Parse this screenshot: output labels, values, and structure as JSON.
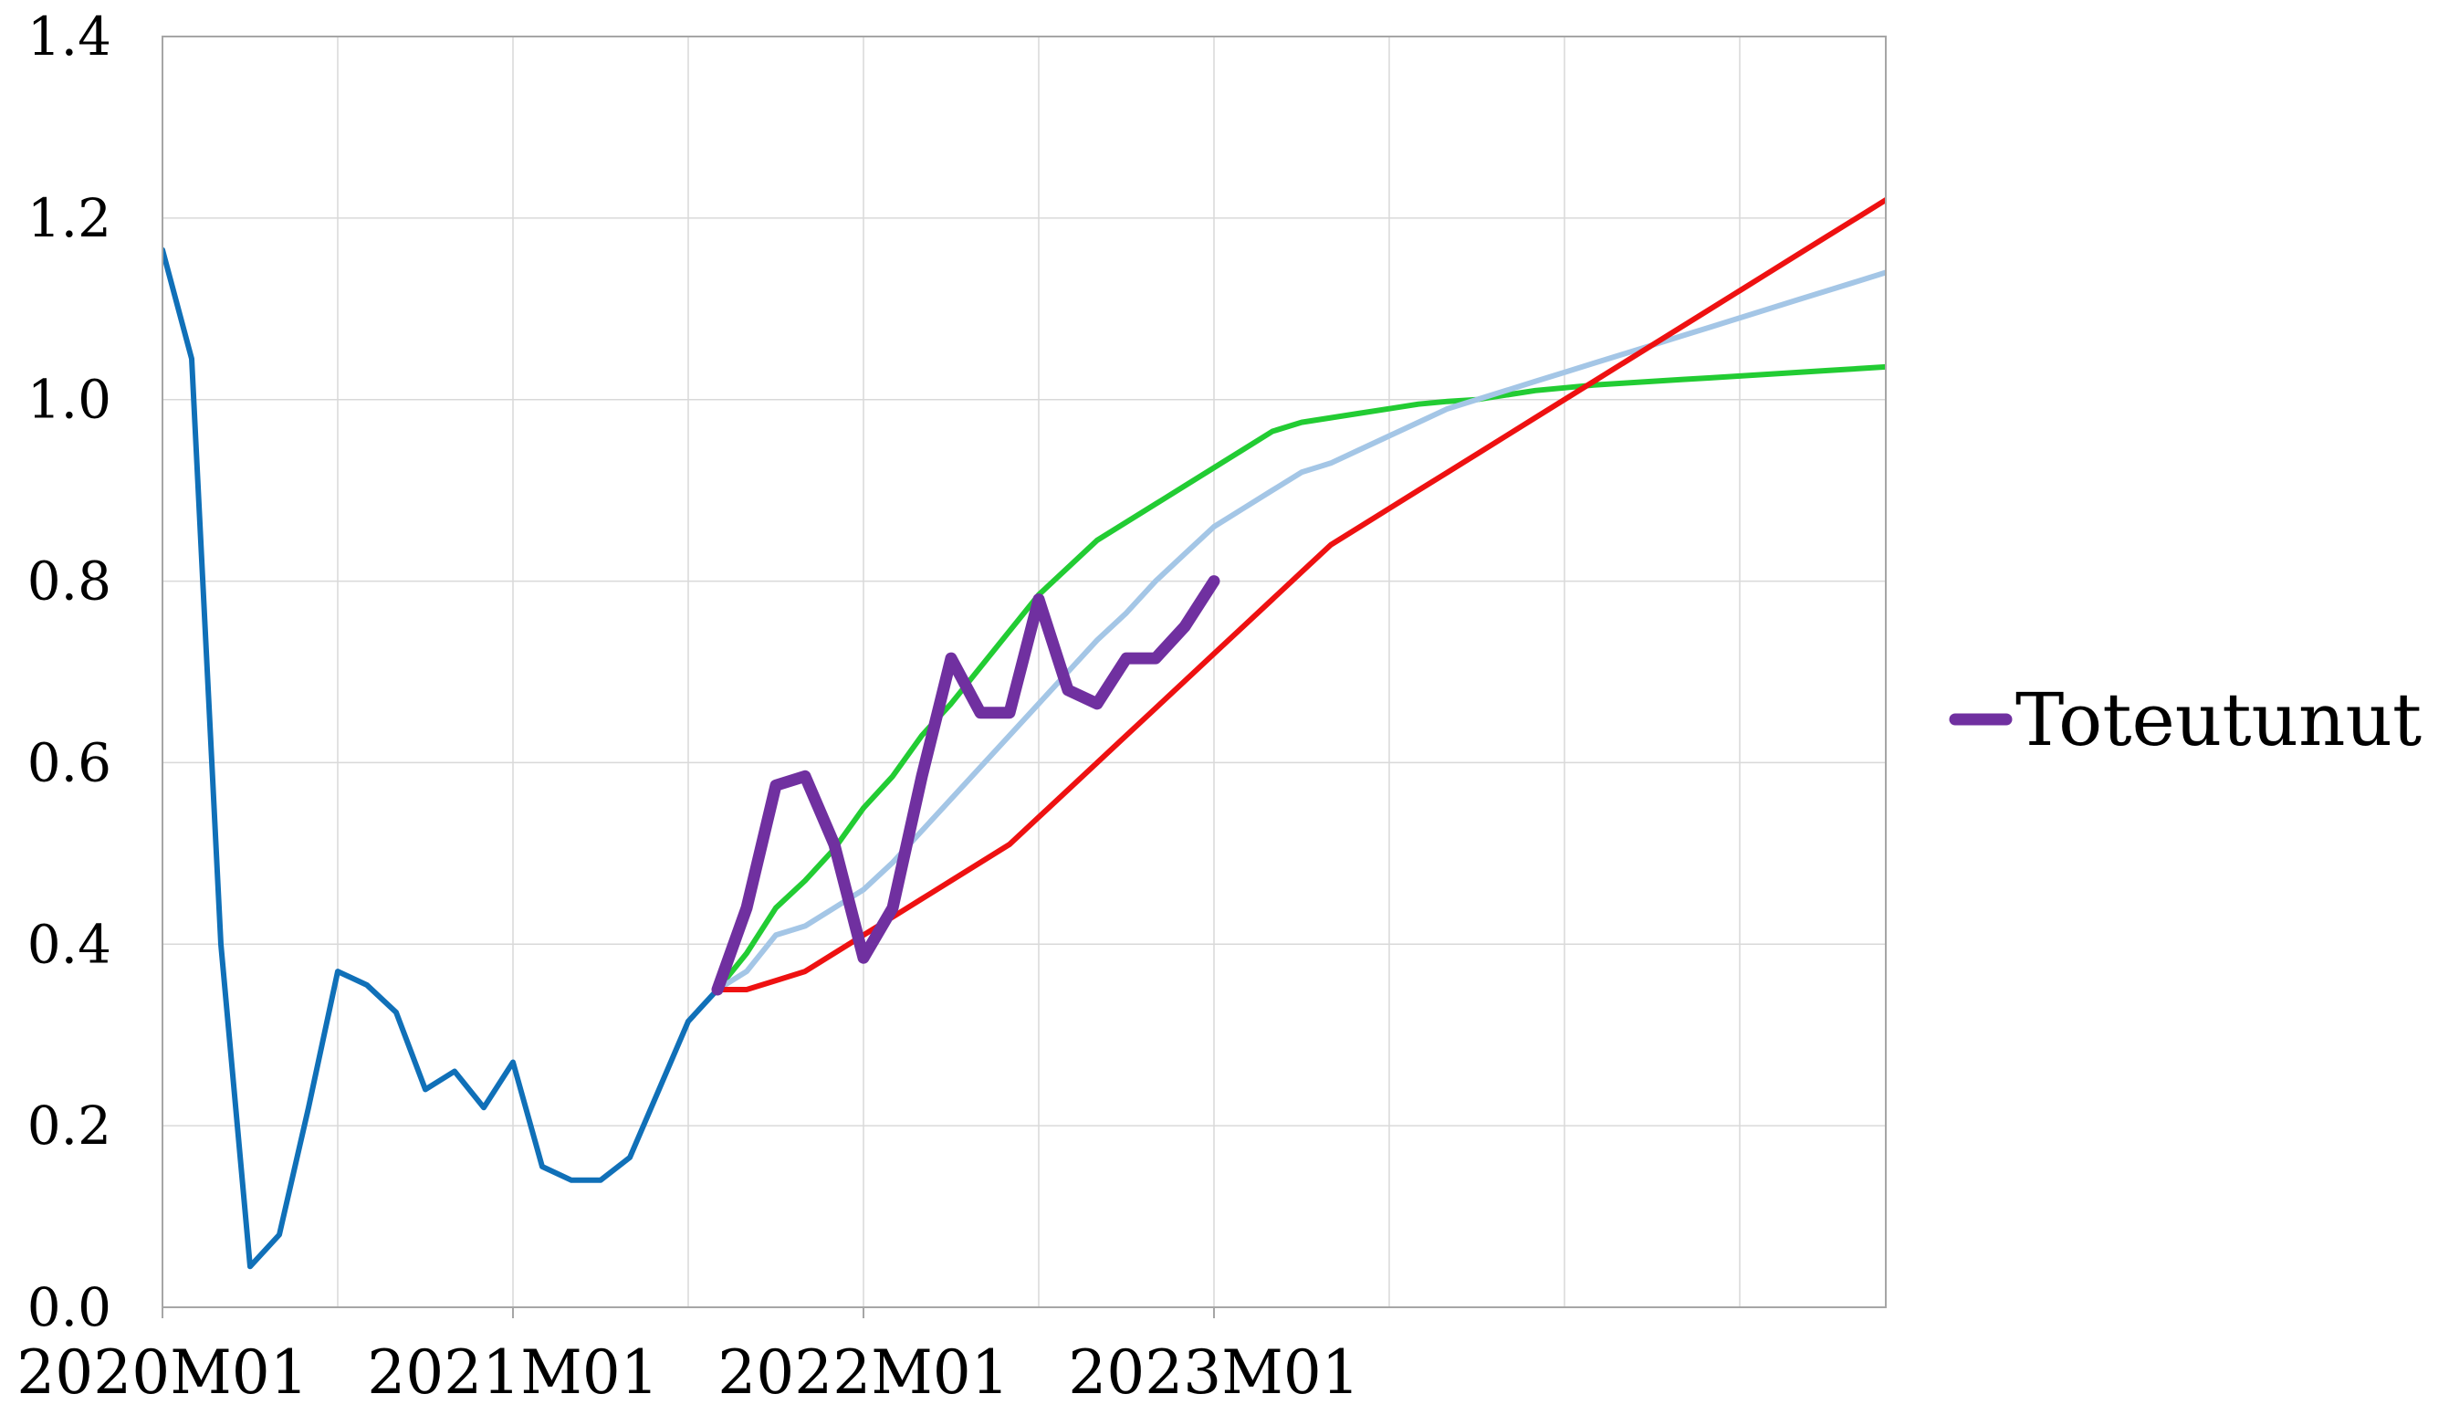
{
  "chart_data": {
    "type": "line",
    "title": "",
    "xlabel": "",
    "ylabel": "",
    "ylim": [
      0.0,
      1.4
    ],
    "yticks": [
      "0.0",
      "0.2",
      "0.4",
      "0.6",
      "0.8",
      "1.0",
      "1.2",
      "1.4"
    ],
    "x_start": "2020M01",
    "x_end": "2024M12",
    "xticks": [
      {
        "label": "2020M01",
        "x": "2020M01"
      },
      {
        "label": "2021M01",
        "x": "2021M01"
      },
      {
        "label": "2022M01",
        "x": "2022M01"
      },
      {
        "label": "2023M01",
        "x": "2023M01"
      }
    ],
    "grid": true,
    "legend_position": "right",
    "series": [
      {
        "name": "",
        "color": "#1070b8",
        "x": [
          "2020M01",
          "2020M02",
          "2020M03",
          "2020M04",
          "2020M05",
          "2020M06",
          "2020M07",
          "2020M08",
          "2020M09",
          "2020M10",
          "2020M11",
          "2020M12",
          "2021M01",
          "2021M02",
          "2021M03",
          "2021M04",
          "2021M05",
          "2021M06",
          "2021M07",
          "2021M08"
        ],
        "values": [
          1.165,
          1.045,
          0.4,
          0.045,
          0.08,
          0.22,
          0.37,
          0.355,
          0.325,
          0.24,
          0.26,
          0.22,
          0.27,
          0.155,
          0.14,
          0.14,
          0.165,
          0.24,
          0.315,
          0.35
        ]
      },
      {
        "name": "",
        "color": "#22cc33",
        "x": [
          "2021M08",
          "2021M09",
          "2021M10",
          "2021M11",
          "2021M12",
          "2022M01",
          "2022M02",
          "2022M03",
          "2022M04",
          "2022M05",
          "2022M06",
          "2022M07",
          "2022M08",
          "2022M09",
          "2022M10",
          "2022M11",
          "2022M12",
          "2023M01",
          "2023M02",
          "2023M03",
          "2023M04",
          "2023M05",
          "2023M06",
          "2023M07",
          "2023M08",
          "2023M09",
          "2023M10",
          "2023M11",
          "2023M12",
          "2024M01",
          "2024M02",
          "2024M03",
          "2024M04",
          "2024M05",
          "2024M06",
          "2024M07",
          "2024M08",
          "2024M09",
          "2024M10",
          "2024M11",
          "2024M12"
        ],
        "values": [
          0.35,
          0.39,
          0.44,
          0.47,
          0.505,
          0.55,
          0.585,
          0.63,
          0.665,
          0.705,
          0.745,
          0.785,
          0.815,
          0.845,
          0.865,
          0.885,
          0.905,
          0.925,
          0.945,
          0.965,
          0.975,
          0.98,
          0.985,
          0.99,
          0.995,
          0.998,
          1.0,
          1.005,
          1.01,
          1.013,
          1.016,
          1.018,
          1.02,
          1.022,
          1.024,
          1.026,
          1.028,
          1.03,
          1.032,
          1.034,
          1.036
        ]
      },
      {
        "name": "",
        "color": "#a4c6e6",
        "x": [
          "2021M08",
          "2021M09",
          "2021M10",
          "2021M11",
          "2021M12",
          "2022M01",
          "2022M02",
          "2022M03",
          "2022M04",
          "2022M05",
          "2022M06",
          "2022M07",
          "2022M08",
          "2022M09",
          "2022M10",
          "2022M11",
          "2022M12",
          "2023M01",
          "2023M02",
          "2023M03",
          "2023M04",
          "2023M05",
          "2023M06",
          "2023M07",
          "2023M08",
          "2023M09",
          "2023M10",
          "2023M11",
          "2023M12",
          "2024M01",
          "2024M02",
          "2024M03",
          "2024M04",
          "2024M05",
          "2024M06",
          "2024M07",
          "2024M08",
          "2024M09",
          "2024M10",
          "2024M11",
          "2024M12"
        ],
        "values": [
          0.35,
          0.37,
          0.41,
          0.42,
          0.44,
          0.46,
          0.49,
          0.525,
          0.56,
          0.595,
          0.63,
          0.665,
          0.7,
          0.735,
          0.765,
          0.8,
          0.83,
          0.86,
          0.88,
          0.9,
          0.92,
          0.93,
          0.945,
          0.96,
          0.975,
          0.99,
          1.0,
          1.01,
          1.02,
          1.03,
          1.04,
          1.05,
          1.06,
          1.07,
          1.08,
          1.09,
          1.1,
          1.11,
          1.12,
          1.13,
          1.14
        ]
      },
      {
        "name": "",
        "color": "#ee1111",
        "x": [
          "2021M08",
          "2021M09",
          "2021M10",
          "2021M11",
          "2021M12",
          "2022M01",
          "2022M02",
          "2022M03",
          "2022M04",
          "2022M05",
          "2022M06",
          "2022M07",
          "2022M08",
          "2022M09",
          "2022M10",
          "2022M11",
          "2022M12",
          "2023M01",
          "2023M02",
          "2023M03",
          "2023M04",
          "2023M05",
          "2023M06",
          "2023M07",
          "2023M08",
          "2023M09",
          "2023M10",
          "2023M11",
          "2023M12",
          "2024M01",
          "2024M02",
          "2024M03",
          "2024M04",
          "2024M05",
          "2024M06",
          "2024M07",
          "2024M08",
          "2024M09",
          "2024M10",
          "2024M11",
          "2024M12"
        ],
        "values": [
          0.35,
          0.35,
          0.36,
          0.37,
          0.39,
          0.41,
          0.43,
          0.45,
          0.47,
          0.49,
          0.51,
          0.54,
          0.57,
          0.6,
          0.63,
          0.66,
          0.69,
          0.72,
          0.75,
          0.78,
          0.81,
          0.84,
          0.86,
          0.88,
          0.9,
          0.92,
          0.94,
          0.96,
          0.98,
          1.0,
          1.02,
          1.04,
          1.06,
          1.08,
          1.1,
          1.12,
          1.14,
          1.16,
          1.18,
          1.2,
          1.22
        ]
      },
      {
        "name": "Toteutunut",
        "color": "#7030a0",
        "x": [
          "2021M08",
          "2021M09",
          "2021M10",
          "2021M11",
          "2021M12",
          "2022M01",
          "2022M02",
          "2022M03",
          "2022M04",
          "2022M05",
          "2022M06",
          "2022M07",
          "2022M08",
          "2022M09",
          "2022M10",
          "2022M11",
          "2022M12",
          "2023M01"
        ],
        "values": [
          0.35,
          0.44,
          0.575,
          0.585,
          0.51,
          0.385,
          0.44,
          0.585,
          0.715,
          0.655,
          0.655,
          0.78,
          0.68,
          0.665,
          0.715,
          0.715,
          0.75,
          0.8
        ]
      }
    ]
  }
}
